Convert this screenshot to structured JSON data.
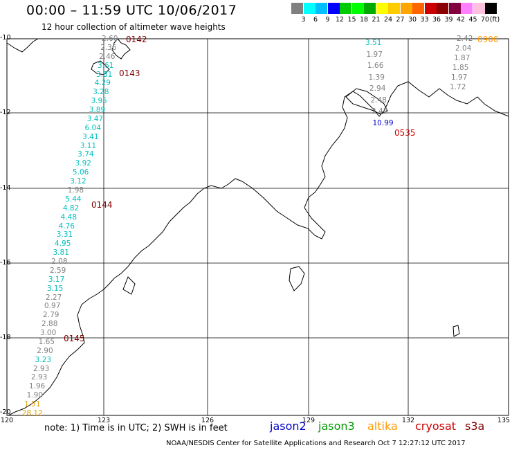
{
  "title": "00:00 – 11:59 UTC 10/06/2017",
  "subtitle": "12 hour collection of altimeter wave heights",
  "scale": {
    "labels": [
      "3",
      "6",
      "9",
      "12",
      "15",
      "18",
      "21",
      "24",
      "27",
      "30",
      "33",
      "36",
      "39",
      "42",
      "45",
      "70"
    ],
    "unit": "(ft)",
    "colors": [
      "#808080",
      "#00ffff",
      "#00bfff",
      "#0000ff",
      "#00cc00",
      "#00ff00",
      "#00aa00",
      "#ffff00",
      "#ffcc00",
      "#ffa500",
      "#ff6600",
      "#cc0000",
      "#8b0000",
      "#800040",
      "#ff80ff",
      "#ffc0e0",
      "#000000"
    ]
  },
  "axes": {
    "y_labels": [
      "-10",
      "-12",
      "-14",
      "-16",
      "-18",
      "-20"
    ],
    "x_labels": [
      "120",
      "123",
      "126",
      "129",
      "132",
      "135"
    ]
  },
  "pass_labels": {
    "p0142": "0142",
    "p0143": "0143",
    "p0144": "0144",
    "p0145": "0145",
    "p0535": "0535",
    "p0900": "0900"
  },
  "track_west": [
    {
      "v": "2.60",
      "c": "#808080"
    },
    {
      "v": "2.36",
      "c": "#808080"
    },
    {
      "v": "2.46",
      "c": "#808080"
    },
    {
      "v": "3.61",
      "c": "#00bfbf"
    },
    {
      "v": "3.81",
      "c": "#00bfbf"
    },
    {
      "v": "4.29",
      "c": "#00bfbf"
    },
    {
      "v": "3.28",
      "c": "#00bfbf"
    },
    {
      "v": "3.95",
      "c": "#00bfbf"
    },
    {
      "v": "3.89",
      "c": "#00bfbf"
    },
    {
      "v": "3.47",
      "c": "#00bfbf"
    },
    {
      "v": "6.04",
      "c": "#00bfbf"
    },
    {
      "v": "3.41",
      "c": "#00bfbf"
    },
    {
      "v": "3.11",
      "c": "#00bfbf"
    },
    {
      "v": "3.74",
      "c": "#00bfbf"
    },
    {
      "v": "3.92",
      "c": "#00bfbf"
    },
    {
      "v": "5.06",
      "c": "#00bfbf"
    },
    {
      "v": "3.12",
      "c": "#00bfbf"
    },
    {
      "v": "1.98",
      "c": "#808080"
    },
    {
      "v": "5.44",
      "c": "#00bfbf"
    },
    {
      "v": "4.82",
      "c": "#00bfbf"
    },
    {
      "v": "4.48",
      "c": "#00bfbf"
    },
    {
      "v": "4.76",
      "c": "#00bfbf"
    },
    {
      "v": "3.31",
      "c": "#00bfbf"
    },
    {
      "v": "4.95",
      "c": "#00bfbf"
    },
    {
      "v": "3.81",
      "c": "#00bfbf"
    },
    {
      "v": "2.08",
      "c": "#808080"
    },
    {
      "v": "2.59",
      "c": "#808080"
    },
    {
      "v": "3.17",
      "c": "#00bfbf"
    },
    {
      "v": "3.15",
      "c": "#00bfbf"
    },
    {
      "v": "2.27",
      "c": "#808080"
    },
    {
      "v": "0.97",
      "c": "#808080"
    },
    {
      "v": "2.79",
      "c": "#808080"
    },
    {
      "v": "2.88",
      "c": "#808080"
    },
    {
      "v": "3.00",
      "c": "#808080"
    },
    {
      "v": "1.65",
      "c": "#808080"
    },
    {
      "v": "2.90",
      "c": "#808080"
    },
    {
      "v": "3.23",
      "c": "#00bfbf"
    },
    {
      "v": "2.93",
      "c": "#808080"
    },
    {
      "v": "2.93",
      "c": "#808080"
    },
    {
      "v": "1.96",
      "c": "#808080"
    },
    {
      "v": "1.90",
      "c": "#808080"
    },
    {
      "v": "1.51",
      "c": "#e0a000"
    },
    {
      "v": "28.12",
      "c": "#e0a000"
    }
  ],
  "track_mid": [
    {
      "v": "3.51",
      "c": "#00bfbf"
    },
    {
      "v": "1.97",
      "c": "#808080"
    },
    {
      "v": "1.66",
      "c": "#808080"
    },
    {
      "v": "1.39",
      "c": "#808080"
    },
    {
      "v": "2.94",
      "c": "#808080"
    },
    {
      "v": "2.48",
      "c": "#808080"
    },
    {
      "v": "2.42",
      "c": "#808080"
    },
    {
      "v": "10.99",
      "c": "#0000cc"
    }
  ],
  "track_east": [
    {
      "v": "2.42",
      "c": "#808080"
    },
    {
      "v": "2.04",
      "c": "#808080"
    },
    {
      "v": "1.87",
      "c": "#808080"
    },
    {
      "v": "1.85",
      "c": "#808080"
    },
    {
      "v": "1.97",
      "c": "#808080"
    },
    {
      "v": "1.72",
      "c": "#808080"
    }
  ],
  "note": "note:  1) Time is in UTC;  2) SWH is in feet",
  "satellites": [
    {
      "name": "jason2",
      "color": "#0000cc"
    },
    {
      "name": "jason3",
      "color": "#009900"
    },
    {
      "name": "altika",
      "color": "#ff9900"
    },
    {
      "name": "cryosat",
      "color": "#cc0000"
    },
    {
      "name": "s3a",
      "color": "#800000"
    }
  ],
  "credit": "NOAA/NESDIS Center for Satellite Applications and Research    Oct  7 12:27:12 UTC 2017"
}
